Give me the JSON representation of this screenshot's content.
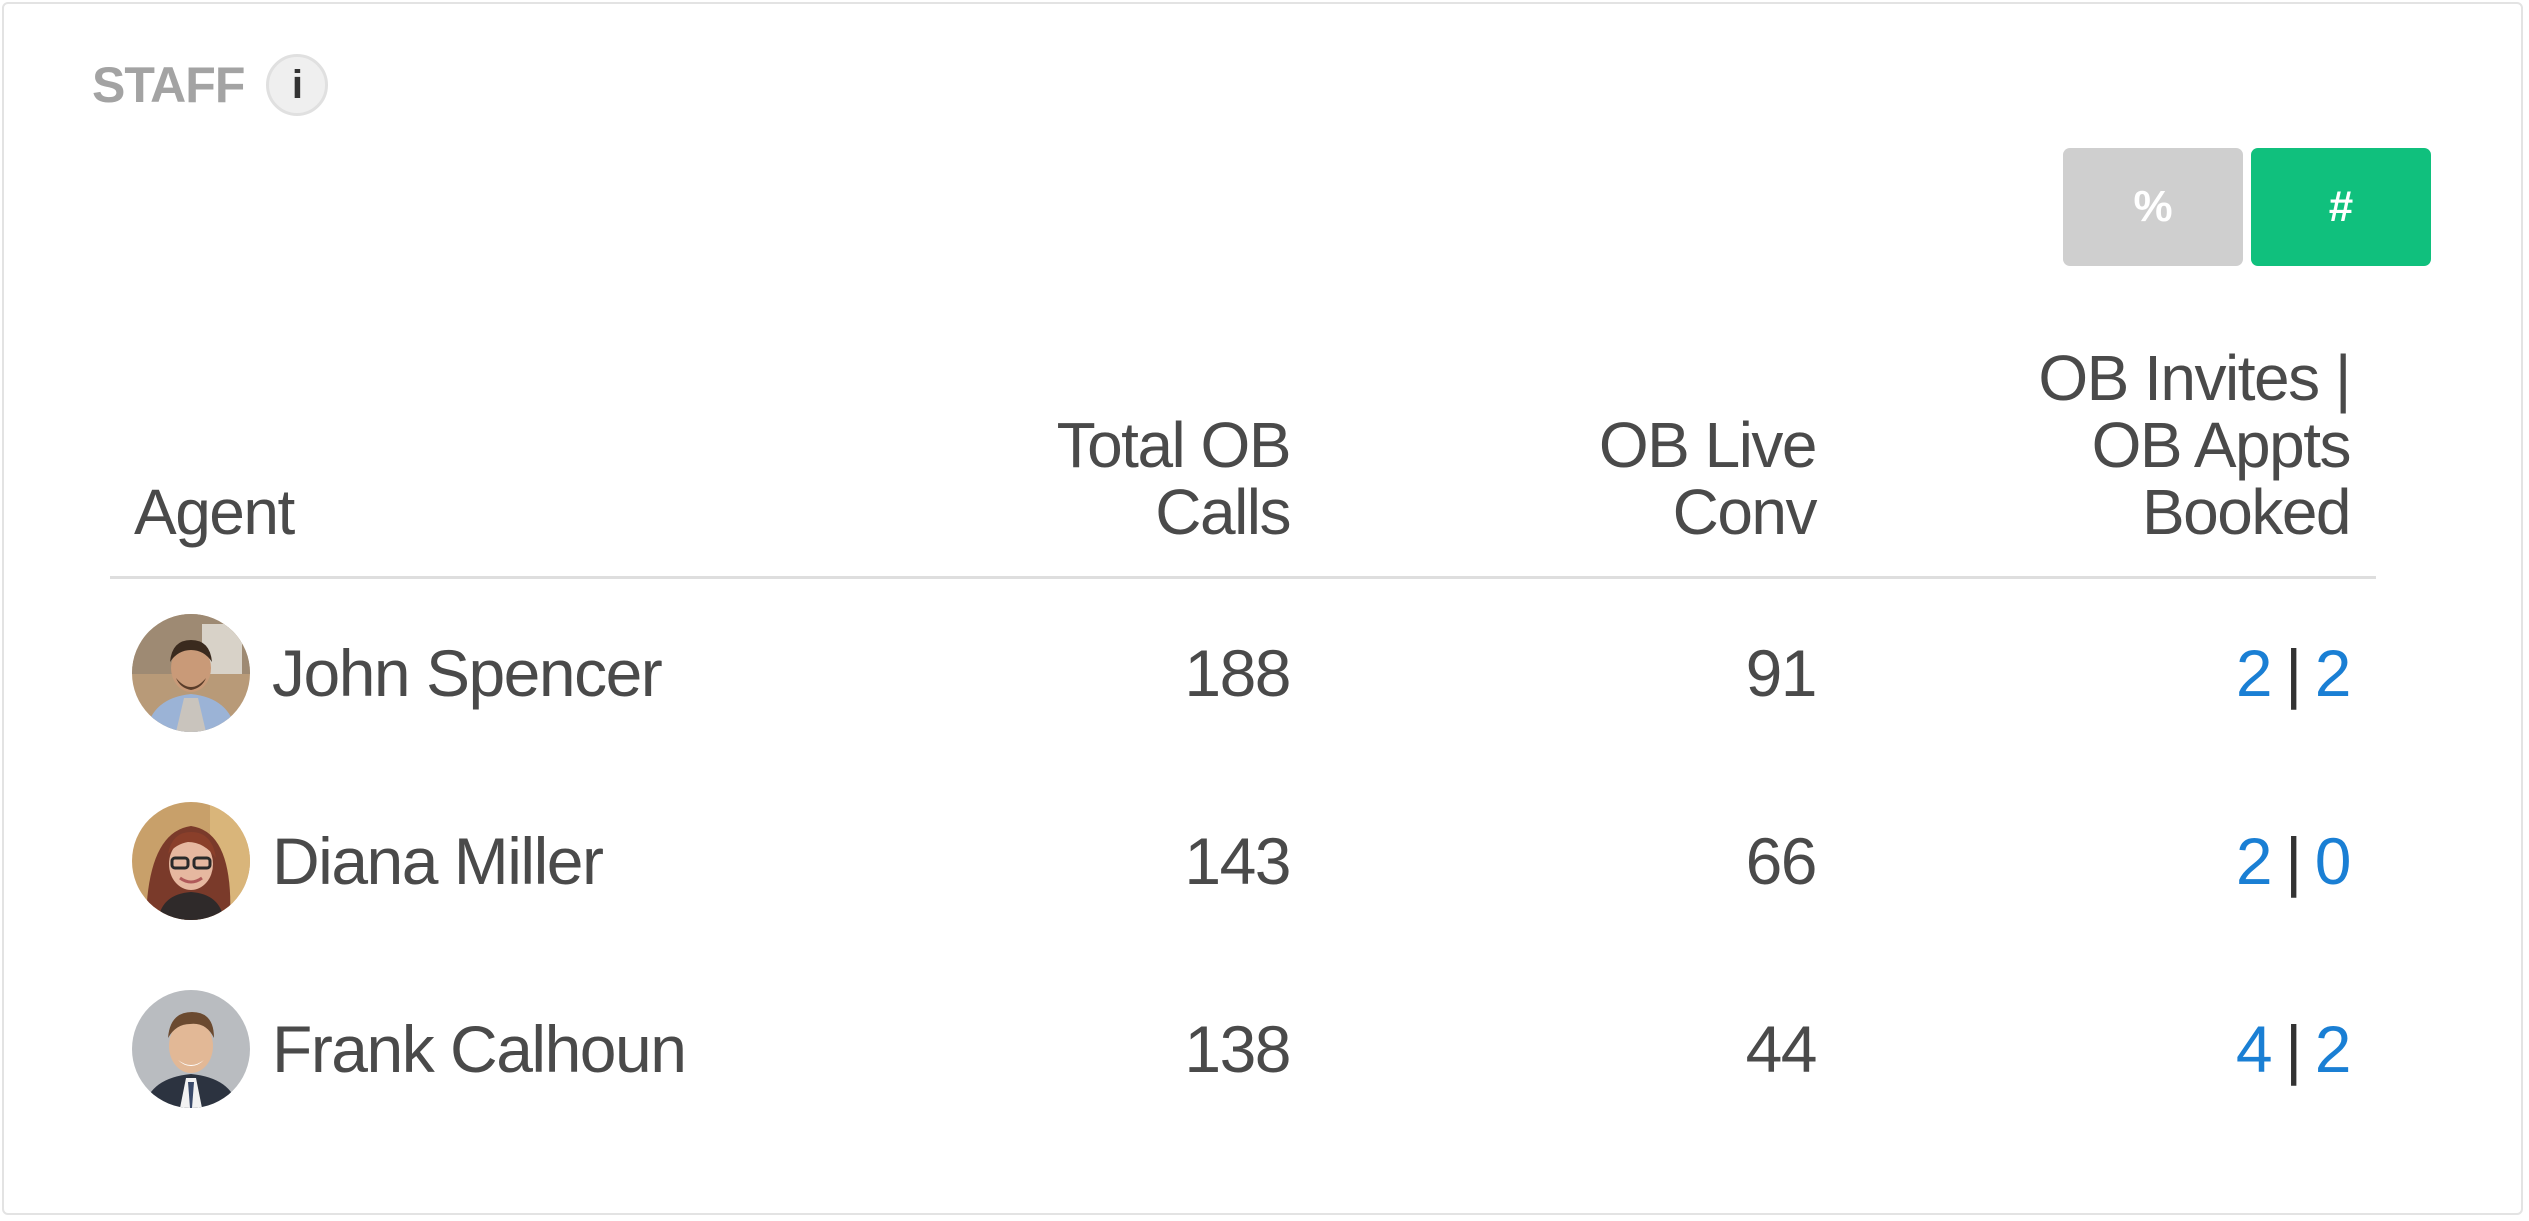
{
  "widget": {
    "title": "STAFF",
    "info_icon": "info-icon"
  },
  "toggle": {
    "percent_label": "%",
    "count_label": "#",
    "active": "#",
    "active_color": "#10c07d",
    "inactive_color": "#cfcfcf"
  },
  "table": {
    "headers": {
      "agent": [
        "Agent"
      ],
      "calls": [
        "Total OB",
        "Calls"
      ],
      "conv": [
        "OB Live",
        "Conv"
      ],
      "invites": [
        "OB Invites |",
        "OB Appts",
        "Booked"
      ]
    },
    "rows": [
      {
        "name": "John Spencer",
        "calls": "188",
        "conv": "91",
        "invites": "2",
        "booked": "2",
        "sep": "|"
      },
      {
        "name": "Diana Miller",
        "calls": "143",
        "conv": "66",
        "invites": "2",
        "booked": "0",
        "sep": "|"
      },
      {
        "name": "Frank Calhoun",
        "calls": "138",
        "conv": "44",
        "invites": "4",
        "booked": "2",
        "sep": "|"
      }
    ],
    "link_color": "#1a7fd4"
  }
}
